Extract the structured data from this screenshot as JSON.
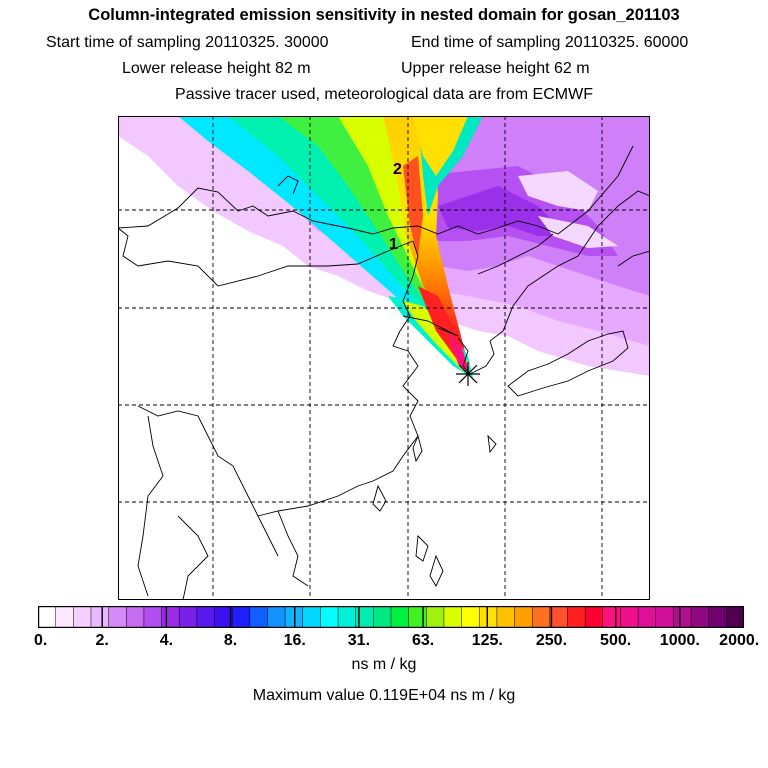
{
  "header": {
    "title": "Column-integrated emission sensitivity in nested domain for gosan_201103",
    "start_time": "Start time of sampling 20110325. 30000",
    "end_time": "End time of sampling 20110325. 60000",
    "lower_height": "Lower release height   82 m",
    "upper_height": "Upper release height   62 m",
    "tracer_note": "Passive tracer used, meteorological data are from ECMWF"
  },
  "map": {
    "markers": [
      {
        "label": "2",
        "lon": 121.5,
        "lat": 46.5
      },
      {
        "label": "1",
        "lon": 121.0,
        "lat": 43.0
      }
    ],
    "receptor": {
      "name": "gosan",
      "lon": 126.2,
      "lat": 33.3
    }
  },
  "colorbar": {
    "tick_labels": [
      "0.",
      "2.",
      "4.",
      "8.",
      "16.",
      "31.",
      "63.",
      "125.",
      "250.",
      "500.",
      "1000.",
      "2000."
    ],
    "colors": [
      "#ffffff",
      "#fbe8ff",
      "#f5d0ff",
      "#eab8ff",
      "#d58af7",
      "#c66cf2",
      "#b24ef0",
      "#9a2ce8",
      "#7a20e8",
      "#5a18f0",
      "#3c10f0",
      "#2020ff",
      "#1060ff",
      "#1490ff",
      "#10b4ff",
      "#00d8ff",
      "#00ffff",
      "#00f0d8",
      "#00ecb0",
      "#00e880",
      "#00f040",
      "#40f020",
      "#a0f010",
      "#d8ff00",
      "#ffff00",
      "#ffe000",
      "#ffc000",
      "#ffa000",
      "#ff7020",
      "#ff5030",
      "#ff2020",
      "#ff0030",
      "#ff1080",
      "#f0108c",
      "#e01098",
      "#d0109a",
      "#b0108e",
      "#900880",
      "#700070",
      "#500050"
    ],
    "units": "ns m / kg",
    "maximum": "Maximum value  0.119E+04 ns m / kg"
  }
}
